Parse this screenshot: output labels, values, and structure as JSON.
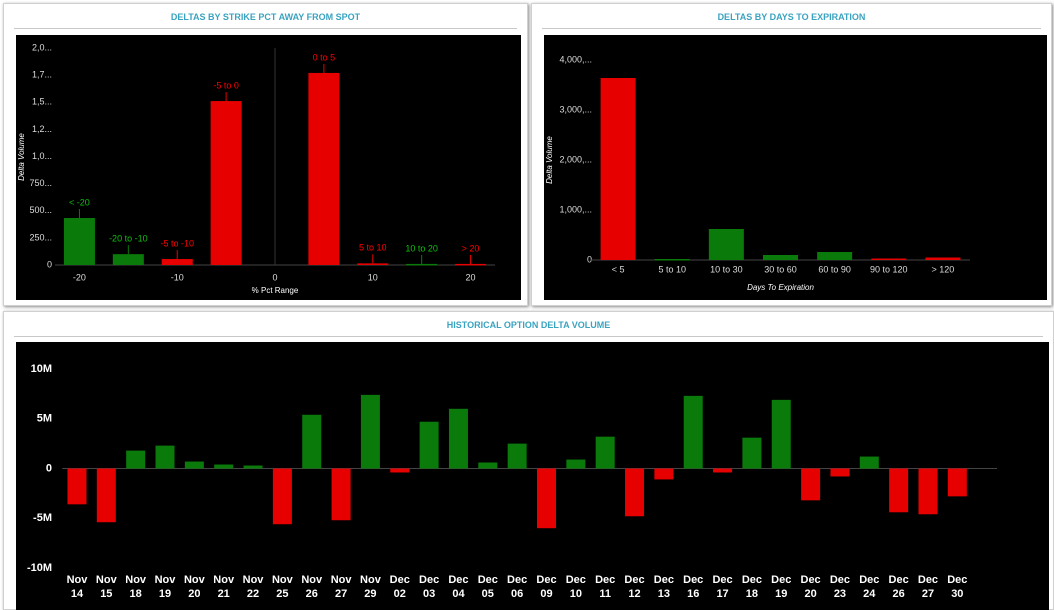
{
  "chart_data": [
    {
      "type": "bar",
      "title": "DELTAS BY STRIKE PCT AWAY FROM SPOT",
      "x_label": "% Pct Range",
      "y_label": "Delta Volume",
      "categories": [
        "< -20",
        "-20 to -10",
        "-5 to -10",
        "-5 to 0",
        "0 to 5",
        "5 to 10",
        "10 to 20",
        "> 20"
      ],
      "x": [
        -20,
        -15,
        -10,
        -5,
        5,
        10,
        15,
        20
      ],
      "values": [
        433000,
        100000,
        55000,
        1511000,
        1770000,
        15000,
        10000,
        10000
      ],
      "colors": [
        "#0a7a0a",
        "#0a7a0a",
        "#e60000",
        "#e60000",
        "#e60000",
        "#e60000",
        "#0a7a0a",
        "#e60000"
      ],
      "xlim": [
        -22.5,
        22.5
      ],
      "xticks": [
        -20,
        -10,
        0,
        10,
        20
      ],
      "ylim": [
        0,
        2000000
      ],
      "yticks": [
        0,
        {
          "value": 250000,
          "label": "250..."
        },
        {
          "value": 500000,
          "label": "500..."
        },
        {
          "value": 750000,
          "label": "750..."
        },
        {
          "value": 1000000,
          "label": "1,0..."
        },
        {
          "value": 1250000,
          "label": "1,2..."
        },
        {
          "value": 1500000,
          "label": "1,5..."
        },
        {
          "value": 1750000,
          "label": "1,7..."
        },
        {
          "value": 2000000,
          "label": "2,0..."
        }
      ]
    },
    {
      "type": "bar",
      "title": "DELTAS BY DAYS TO EXPIRATION",
      "x_label": "Days To Expiration",
      "y_label": "Delta Volume",
      "categories": [
        "< 5",
        "5 to 10",
        "10 to 30",
        "30 to 60",
        "60 to 90",
        "90 to 120",
        "> 120"
      ],
      "values": [
        3640000,
        20000,
        620000,
        100000,
        160000,
        30000,
        50000
      ],
      "colors": [
        "#e60000",
        "#0a7a0a",
        "#0a7a0a",
        "#0a7a0a",
        "#0a7a0a",
        "#e60000",
        "#e60000"
      ],
      "ylim": [
        0,
        4000000
      ],
      "yticks": [
        0,
        {
          "value": 1000000,
          "label": "1,000,..."
        },
        {
          "value": 2000000,
          "label": "2,000,..."
        },
        {
          "value": 3000000,
          "label": "3,000,..."
        },
        {
          "value": 4000000,
          "label": "4,000,..."
        }
      ]
    },
    {
      "type": "bar",
      "title": "HISTORICAL OPTION DELTA VOLUME",
      "categories": [
        "Nov 14",
        "Nov 15",
        "Nov 18",
        "Nov 19",
        "Nov 20",
        "Nov 21",
        "Nov 22",
        "Nov 25",
        "Nov 26",
        "Nov 27",
        "Nov 29",
        "Dec 02",
        "Dec 03",
        "Dec 04",
        "Dec 05",
        "Dec 06",
        "Dec 09",
        "Dec 10",
        "Dec 11",
        "Dec 12",
        "Dec 13",
        "Dec 16",
        "Dec 17",
        "Dec 18",
        "Dec 19",
        "Dec 20",
        "Dec 23",
        "Dec 24",
        "Dec 26",
        "Dec 27",
        "Dec 30"
      ],
      "values": [
        -3600000,
        -5400000,
        1800000,
        2300000,
        700000,
        400000,
        300000,
        -5600000,
        5400000,
        -5200000,
        7400000,
        -400000,
        4700000,
        6000000,
        600000,
        2500000,
        -6000000,
        900000,
        3200000,
        -4800000,
        -1100000,
        7300000,
        -400000,
        3100000,
        6900000,
        -3200000,
        -800000,
        1200000,
        -4400000,
        -4600000,
        -2800000
      ],
      "colors": [
        "#e60000",
        "#e60000",
        "#0a7a0a",
        "#0a7a0a",
        "#0a7a0a",
        "#0a7a0a",
        "#0a7a0a",
        "#e60000",
        "#0a7a0a",
        "#e60000",
        "#0a7a0a",
        "#e60000",
        "#0a7a0a",
        "#0a7a0a",
        "#0a7a0a",
        "#0a7a0a",
        "#e60000",
        "#0a7a0a",
        "#0a7a0a",
        "#e60000",
        "#e60000",
        "#0a7a0a",
        "#e60000",
        "#0a7a0a",
        "#0a7a0a",
        "#e60000",
        "#e60000",
        "#0a7a0a",
        "#e60000",
        "#e60000",
        "#e60000"
      ],
      "ylim": [
        -10000000,
        10000000
      ],
      "yticks": [
        {
          "value": -10000000,
          "label": "-10M"
        },
        {
          "value": -5000000,
          "label": "-5M"
        },
        0,
        {
          "value": 5000000,
          "label": "5M"
        },
        {
          "value": 10000000,
          "label": "10M"
        }
      ]
    }
  ]
}
